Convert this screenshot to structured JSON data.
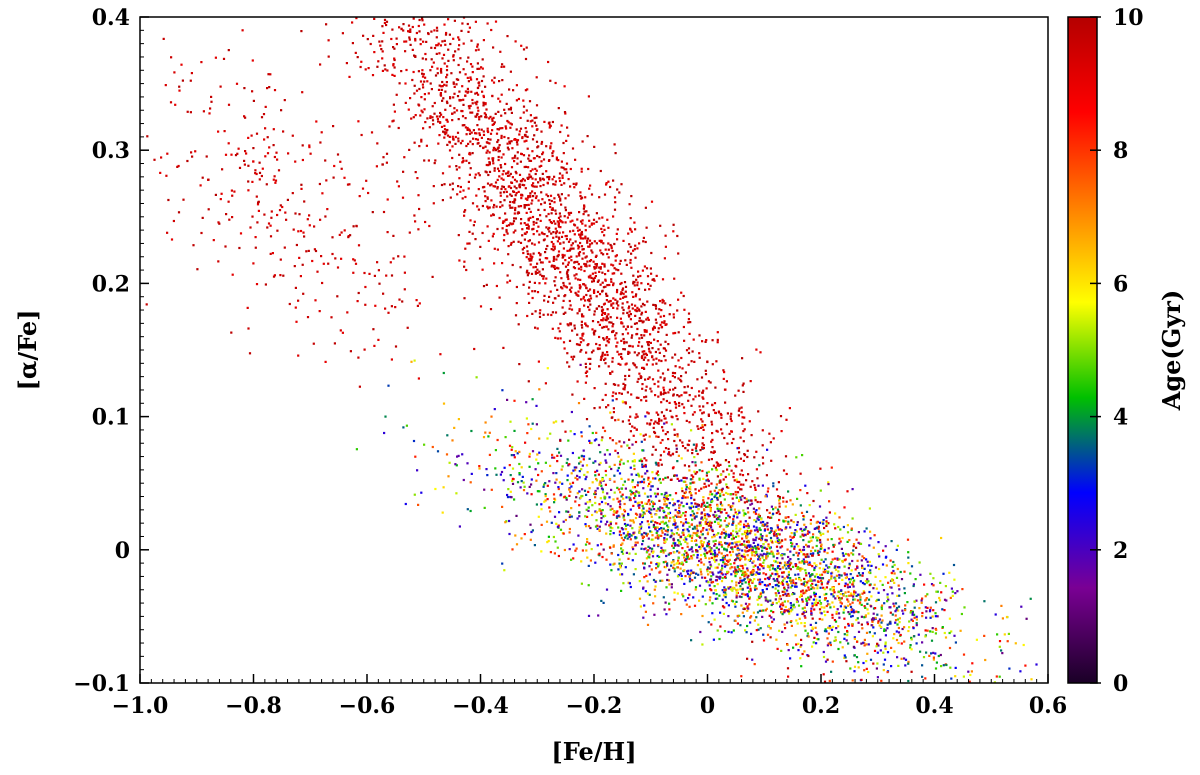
{
  "chart_data": {
    "type": "scatter",
    "title": "",
    "xlabel": "[Fe/H]",
    "ylabel": "[α/Fe]",
    "xlim": [
      -1.0,
      0.6
    ],
    "ylim": [
      -0.1,
      0.4
    ],
    "xticks": [
      -1.0,
      -0.8,
      -0.6,
      -0.4,
      -0.2,
      0,
      0.2,
      0.4,
      0.6
    ],
    "xtick_labels": [
      "−1.0",
      "−0.8",
      "−0.6",
      "−0.4",
      "−0.2",
      "0",
      "0.2",
      "0.4",
      "0.6"
    ],
    "yticks": [
      -0.1,
      0,
      0.1,
      0.2,
      0.3,
      0.4
    ],
    "ytick_labels": [
      "−0.1",
      "0",
      "0.1",
      "0.2",
      "0.3",
      "0.4"
    ],
    "grid": false,
    "colorbar": {
      "label": "Age(Gyr)",
      "range": [
        0,
        10
      ],
      "ticks": [
        0,
        2,
        4,
        6,
        8,
        10
      ],
      "tick_labels": [
        "0",
        "2",
        "4",
        "6",
        "8",
        "10"
      ],
      "colormap": [
        "#1a0026",
        "#7a0094",
        "#0000ff",
        "#00c000",
        "#ffff00",
        "#ff8000",
        "#ff0000",
        "#b40000"
      ]
    },
    "populations": [
      {
        "fe_h_mean": -0.25,
        "fe_h_sd": 0.2,
        "alpha_fe_intercept": 0.09,
        "alpha_fe_slope": -0.55,
        "alpha_fe_sd": 0.045,
        "age_gyr": [
          9,
          10
        ],
        "weight": 0.42
      },
      {
        "fe_h_mean": -0.75,
        "fe_h_sd": 0.15,
        "alpha_fe_intercept": 0.11,
        "alpha_fe_slope": -0.2,
        "alpha_fe_sd": 0.05,
        "age_gyr": [
          9,
          10
        ],
        "weight": 0.06
      },
      {
        "fe_h_mean": 0.05,
        "fe_h_sd": 0.2,
        "alpha_fe_intercept": 0.006,
        "alpha_fe_slope": -0.155,
        "alpha_fe_sd": 0.028,
        "age_gyr": [
          1,
          9
        ],
        "weight": 0.52
      }
    ]
  }
}
